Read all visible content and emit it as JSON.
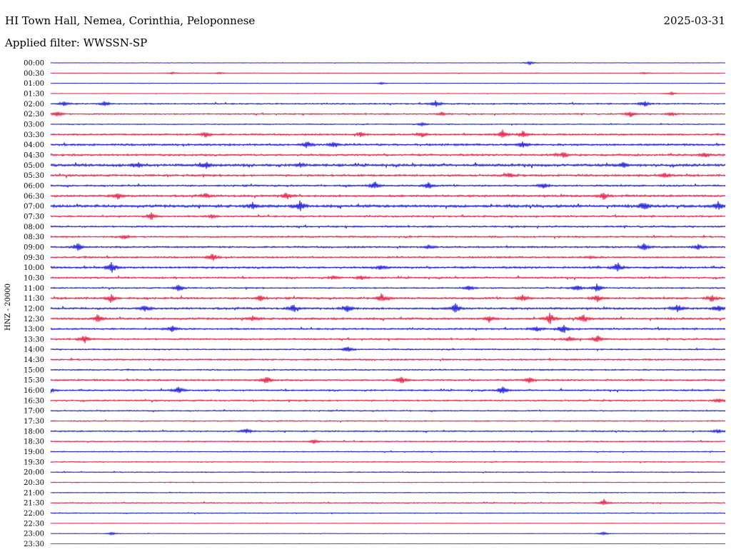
{
  "header": {
    "station": "HI Town Hall, Nemea, Corinthia, Peloponnese",
    "date": "2025-03-31",
    "filter": "Applied filter: WWSSN-SP"
  },
  "channel_label": "HNZ - 20000",
  "colors": {
    "blue": "#1212d4",
    "red": "#e0183c"
  },
  "chart_data": {
    "type": "line",
    "title": "HI Town Hall, Nemea, Corinthia, Peloponnese",
    "subtitle": "Applied filter: WWSSN-SP",
    "ylabel": "HNZ - 20000",
    "rows": [
      {
        "label": "00:00",
        "color": "blue",
        "activity": 0.2,
        "events": [
          [
            0.71,
            1.2
          ]
        ]
      },
      {
        "label": "00:30",
        "color": "red",
        "activity": 0.3,
        "events": [
          [
            0.18,
            0.6
          ],
          [
            0.25,
            0.6
          ],
          [
            0.88,
            0.6
          ]
        ]
      },
      {
        "label": "01:00",
        "color": "blue",
        "activity": 0.3,
        "events": [
          [
            0.49,
            0.6
          ]
        ]
      },
      {
        "label": "01:30",
        "color": "red",
        "activity": 0.3,
        "events": [
          [
            0.92,
            1.0
          ]
        ]
      },
      {
        "label": "02:00",
        "color": "blue",
        "activity": 0.8,
        "events": [
          [
            0.02,
            1.2
          ],
          [
            0.08,
            1.4
          ],
          [
            0.57,
            2.0
          ],
          [
            0.88,
            2.0
          ]
        ]
      },
      {
        "label": "02:30",
        "color": "red",
        "activity": 0.8,
        "events": [
          [
            0.01,
            2.0
          ],
          [
            0.58,
            1.2
          ],
          [
            0.86,
            1.8
          ],
          [
            0.92,
            1.2
          ]
        ]
      },
      {
        "label": "03:00",
        "color": "blue",
        "activity": 0.6,
        "events": [
          [
            0.55,
            1.0
          ]
        ]
      },
      {
        "label": "03:30",
        "color": "red",
        "activity": 1.0,
        "events": [
          [
            0.23,
            2.0
          ],
          [
            0.46,
            1.5
          ],
          [
            0.55,
            1.8
          ],
          [
            0.67,
            2.6
          ],
          [
            0.7,
            2.2
          ]
        ]
      },
      {
        "label": "04:00",
        "color": "blue",
        "activity": 1.2,
        "events": [
          [
            0.38,
            2.0
          ],
          [
            0.42,
            1.8
          ],
          [
            0.7,
            2.0
          ]
        ]
      },
      {
        "label": "04:30",
        "color": "red",
        "activity": 1.2,
        "events": [
          [
            0.76,
            2.0
          ],
          [
            0.97,
            1.4
          ]
        ]
      },
      {
        "label": "05:00",
        "color": "blue",
        "activity": 1.5,
        "events": [
          [
            0.13,
            1.8
          ],
          [
            0.23,
            2.2
          ],
          [
            0.37,
            1.4
          ],
          [
            0.85,
            1.5
          ]
        ]
      },
      {
        "label": "05:30",
        "color": "red",
        "activity": 1.2,
        "events": [
          [
            0.68,
            1.4
          ],
          [
            0.91,
            1.6
          ]
        ]
      },
      {
        "label": "06:00",
        "color": "blue",
        "activity": 1.0,
        "events": [
          [
            0.48,
            2.6
          ],
          [
            0.56,
            2.0
          ],
          [
            0.73,
            1.8
          ]
        ]
      },
      {
        "label": "06:30",
        "color": "red",
        "activity": 1.2,
        "events": [
          [
            0.1,
            2.0
          ],
          [
            0.23,
            1.4
          ],
          [
            0.35,
            2.2
          ],
          [
            0.82,
            2.4
          ]
        ]
      },
      {
        "label": "07:00",
        "color": "blue",
        "activity": 1.6,
        "events": [
          [
            0.3,
            2.0
          ],
          [
            0.37,
            3.2
          ],
          [
            0.88,
            2.8
          ],
          [
            0.99,
            2.8
          ]
        ]
      },
      {
        "label": "07:30",
        "color": "red",
        "activity": 1.0,
        "events": [
          [
            0.15,
            2.2
          ],
          [
            0.24,
            1.4
          ]
        ]
      },
      {
        "label": "08:00",
        "color": "blue",
        "activity": 1.0,
        "events": []
      },
      {
        "label": "08:30",
        "color": "red",
        "activity": 1.0,
        "events": [
          [
            0.11,
            1.2
          ]
        ]
      },
      {
        "label": "09:00",
        "color": "blue",
        "activity": 1.0,
        "events": [
          [
            0.04,
            2.6
          ],
          [
            0.56,
            1.2
          ],
          [
            0.88,
            2.4
          ],
          [
            0.96,
            1.8
          ]
        ]
      },
      {
        "label": "09:30",
        "color": "red",
        "activity": 1.0,
        "events": [
          [
            0.24,
            2.4
          ],
          [
            0.8,
            1.0
          ]
        ]
      },
      {
        "label": "10:00",
        "color": "blue",
        "activity": 1.2,
        "events": [
          [
            0.09,
            3.4
          ],
          [
            0.49,
            1.8
          ],
          [
            0.84,
            3.2
          ]
        ]
      },
      {
        "label": "10:30",
        "color": "red",
        "activity": 1.0,
        "events": [
          [
            0.42,
            1.4
          ],
          [
            0.46,
            1.4
          ]
        ]
      },
      {
        "label": "11:00",
        "color": "blue",
        "activity": 0.8,
        "events": [
          [
            0.19,
            2.4
          ],
          [
            0.62,
            1.8
          ],
          [
            0.78,
            2.0
          ],
          [
            0.81,
            2.6
          ]
        ]
      },
      {
        "label": "11:30",
        "color": "red",
        "activity": 1.2,
        "events": [
          [
            0.09,
            2.4
          ],
          [
            0.31,
            1.8
          ],
          [
            0.49,
            3.0
          ],
          [
            0.7,
            2.0
          ],
          [
            0.81,
            2.4
          ],
          [
            0.98,
            2.0
          ]
        ]
      },
      {
        "label": "12:00",
        "color": "blue",
        "activity": 1.2,
        "events": [
          [
            0.14,
            2.0
          ],
          [
            0.36,
            2.4
          ],
          [
            0.44,
            2.8
          ],
          [
            0.6,
            3.2
          ],
          [
            0.93,
            2.4
          ],
          [
            0.99,
            2.4
          ]
        ]
      },
      {
        "label": "12:30",
        "color": "red",
        "activity": 1.2,
        "events": [
          [
            0.07,
            2.4
          ],
          [
            0.3,
            1.6
          ],
          [
            0.65,
            2.0
          ],
          [
            0.74,
            3.4
          ],
          [
            0.79,
            2.6
          ]
        ]
      },
      {
        "label": "13:00",
        "color": "blue",
        "activity": 1.0,
        "events": [
          [
            0.18,
            2.2
          ],
          [
            0.72,
            1.8
          ],
          [
            0.76,
            3.0
          ]
        ]
      },
      {
        "label": "13:30",
        "color": "red",
        "activity": 1.0,
        "events": [
          [
            0.05,
            2.4
          ],
          [
            0.77,
            1.6
          ],
          [
            0.81,
            2.4
          ]
        ]
      },
      {
        "label": "14:00",
        "color": "blue",
        "activity": 0.8,
        "events": [
          [
            0.44,
            1.8
          ]
        ]
      },
      {
        "label": "14:30",
        "color": "red",
        "activity": 1.0,
        "events": []
      },
      {
        "label": "15:00",
        "color": "blue",
        "activity": 0.8,
        "events": []
      },
      {
        "label": "15:30",
        "color": "red",
        "activity": 1.0,
        "events": [
          [
            0.32,
            2.4
          ],
          [
            0.52,
            2.6
          ],
          [
            0.71,
            2.2
          ]
        ]
      },
      {
        "label": "16:00",
        "color": "blue",
        "activity": 0.9,
        "events": [
          [
            0.0,
            1.4
          ],
          [
            0.19,
            2.4
          ],
          [
            0.67,
            2.6
          ]
        ]
      },
      {
        "label": "16:30",
        "color": "red",
        "activity": 0.9,
        "events": [
          [
            0.99,
            1.2
          ]
        ]
      },
      {
        "label": "17:00",
        "color": "blue",
        "activity": 0.7,
        "events": []
      },
      {
        "label": "17:30",
        "color": "red",
        "activity": 0.7,
        "events": []
      },
      {
        "label": "18:00",
        "color": "blue",
        "activity": 0.8,
        "events": [
          [
            0.29,
            1.6
          ],
          [
            0.99,
            1.2
          ]
        ]
      },
      {
        "label": "18:30",
        "color": "red",
        "activity": 0.7,
        "events": [
          [
            0.39,
            1.4
          ]
        ]
      },
      {
        "label": "19:00",
        "color": "blue",
        "activity": 0.6,
        "events": []
      },
      {
        "label": "19:30",
        "color": "red",
        "activity": 0.6,
        "events": []
      },
      {
        "label": "20:00",
        "color": "blue",
        "activity": 0.6,
        "events": []
      },
      {
        "label": "20:30",
        "color": "red",
        "activity": 0.5,
        "events": []
      },
      {
        "label": "21:00",
        "color": "blue",
        "activity": 0.5,
        "events": []
      },
      {
        "label": "21:30",
        "color": "red",
        "activity": 0.6,
        "events": [
          [
            0.82,
            1.8
          ]
        ]
      },
      {
        "label": "22:00",
        "color": "blue",
        "activity": 0.5,
        "events": []
      },
      {
        "label": "22:30",
        "color": "red",
        "activity": 0.3,
        "events": []
      },
      {
        "label": "23:00",
        "color": "blue",
        "activity": 0.3,
        "events": [
          [
            0.09,
            1.0
          ],
          [
            0.82,
            1.0
          ]
        ]
      },
      {
        "label": "23:30",
        "color": "red",
        "activity": 0.2,
        "events": []
      }
    ]
  }
}
